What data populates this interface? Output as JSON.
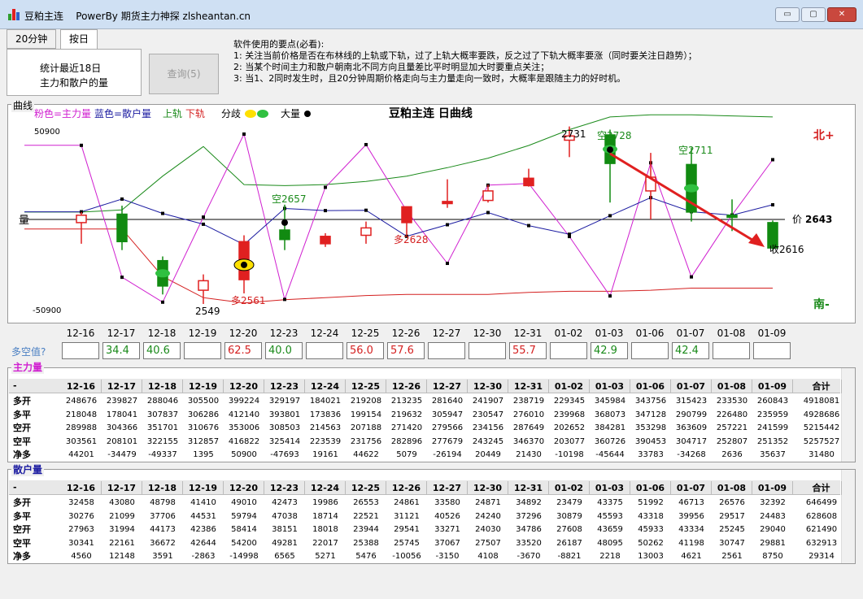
{
  "window": {
    "title": "豆粕主连",
    "subtitle": "PowerBy 期货主力神探 zlsheantan.cn",
    "buttons": {
      "minimize": "▭",
      "maximize": "▢",
      "close": "✕"
    },
    "brand_colors": [
      "#2e9e2e",
      "#e02020",
      "#2f5fc9"
    ]
  },
  "tabs": [
    {
      "label": "20分钟"
    },
    {
      "label": "按日"
    }
  ],
  "panel": {
    "line1": "统计最近18日",
    "line2": "主力和散户的量",
    "query_button": "查询(5)"
  },
  "notes": [
    "软件使用的要点(必看):",
    "1: 关注当前价格是否在布林线的上轨或下轨，过了上轨大概率要跌，反之过了下轨大概率要涨（同时要关注日趋势）；",
    "2: 当某个时间主力和散户朝南北不同方向且量差比平时明显加大时要重点关注；",
    "3: 当1、2同时发生时，且20分钟周期价格走向与主力量走向一致时，大概率是跟随主力的好时机。"
  ],
  "chart": {
    "caption": "曲线",
    "legend": {
      "pink": "粉色=主力量",
      "blue": "蓝色=散户量",
      "upper": "上轨",
      "lower": "下轨",
      "diverge": "分歧",
      "big": "大量"
    },
    "title": "豆粕主连 日曲线",
    "y_top": "50900",
    "y_bottom": "-50900",
    "y_axis_label": "量",
    "north": "北+",
    "south": "南-",
    "price_label": "价",
    "price_value": "2643",
    "annotations": [
      "2731",
      "空2728",
      "空2711",
      "空2657",
      "多2628",
      "多2561",
      "2549",
      "收2616"
    ]
  },
  "chart_data": {
    "type": "line",
    "x": [
      "12-16",
      "12-17",
      "12-18",
      "12-19",
      "12-20",
      "12-23",
      "12-24",
      "12-25",
      "12-26",
      "12-27",
      "12-30",
      "12-31",
      "01-02",
      "01-03",
      "01-06",
      "01-07",
      "01-08",
      "01-09"
    ],
    "series": [
      {
        "name": "粉色=主力量",
        "values": [
          44201,
          -34479,
          -49337,
          1395,
          50900,
          -47693,
          19161,
          44622,
          5079,
          -26194,
          20449,
          21430,
          -10198,
          -45644,
          33783,
          -34268,
          2636,
          35637
        ]
      },
      {
        "name": "蓝色=散户量",
        "values": [
          4560,
          12148,
          3591,
          -2863,
          -14998,
          6565,
          5271,
          5476,
          -10056,
          -3150,
          4108,
          -3670,
          -8821,
          2218,
          13003,
          4621,
          2561,
          8750
        ]
      }
    ],
    "candles": [
      {
        "o": 2640,
        "h": 2650,
        "l": 2620,
        "c": 2647
      },
      {
        "o": 2648,
        "h": 2656,
        "l": 2614,
        "c": 2622
      },
      {
        "o": 2604,
        "h": 2608,
        "l": 2572,
        "c": 2580
      },
      {
        "o": 2576,
        "h": 2591,
        "l": 2563,
        "c": 2585
      },
      {
        "o": 2586,
        "h": 2628,
        "l": 2573,
        "c": 2622
      },
      {
        "o": 2633,
        "h": 2657,
        "l": 2614,
        "c": 2624
      },
      {
        "o": 2620,
        "h": 2630,
        "l": 2617,
        "c": 2627
      },
      {
        "o": 2628,
        "h": 2641,
        "l": 2620,
        "c": 2635
      },
      {
        "o": 2640,
        "h": 2655,
        "l": 2628,
        "c": 2655
      },
      {
        "o": 2658,
        "h": 2681,
        "l": 2654,
        "c": 2660
      },
      {
        "o": 2661,
        "h": 2676,
        "l": 2659,
        "c": 2670
      },
      {
        "o": 2675,
        "h": 2691,
        "l": 2674,
        "c": 2682
      },
      {
        "o": 2718,
        "h": 2731,
        "l": 2702,
        "c": 2722
      },
      {
        "o": 2723,
        "h": 2728,
        "l": 2659,
        "c": 2696
      },
      {
        "o": 2670,
        "h": 2706,
        "l": 2643,
        "c": 2683
      },
      {
        "o": 2695,
        "h": 2711,
        "l": 2641,
        "c": 2650
      },
      {
        "o": 2647,
        "h": 2662,
        "l": 2632,
        "c": 2645
      },
      {
        "o": 2640,
        "h": 2642,
        "l": 2614,
        "c": 2616
      }
    ],
    "upper_band": [
      2650,
      2652,
      2684,
      2712,
      2676,
      2675,
      2676,
      2679,
      2684,
      2692,
      2701,
      2713,
      2728,
      2740,
      2742,
      2742,
      2741,
      2740
    ],
    "lower_band": [
      2634,
      2634,
      2589,
      2569,
      2564,
      2567,
      2569,
      2571,
      2572,
      2572,
      2572,
      2574,
      2575,
      2575,
      2576,
      2578,
      2578,
      2578
    ]
  },
  "dd_section": {
    "label": "多空值?"
  },
  "dates": [
    "12-16",
    "12-17",
    "12-18",
    "12-19",
    "12-20",
    "12-23",
    "12-24",
    "12-25",
    "12-26",
    "12-27",
    "12-30",
    "12-31",
    "01-02",
    "01-03",
    "01-06",
    "01-07",
    "01-08",
    "01-09"
  ],
  "dd_values": [
    {
      "v": "",
      "c": "#000"
    },
    {
      "v": "34.4",
      "c": "#1a8a1a"
    },
    {
      "v": "40.6",
      "c": "#1a8a1a"
    },
    {
      "v": "",
      "c": "#000"
    },
    {
      "v": "62.5",
      "c": "#d42020"
    },
    {
      "v": "40.0",
      "c": "#1a8a1a"
    },
    {
      "v": "",
      "c": "#000"
    },
    {
      "v": "56.0",
      "c": "#d42020"
    },
    {
      "v": "57.6",
      "c": "#d42020"
    },
    {
      "v": "",
      "c": "#000"
    },
    {
      "v": "",
      "c": "#000"
    },
    {
      "v": "55.7",
      "c": "#d42020"
    },
    {
      "v": "",
      "c": "#000"
    },
    {
      "v": "42.9",
      "c": "#1a8a1a"
    },
    {
      "v": "",
      "c": "#000"
    },
    {
      "v": "42.4",
      "c": "#1a8a1a"
    },
    {
      "v": "",
      "c": "#000"
    },
    {
      "v": "",
      "c": "#000"
    }
  ],
  "main_table": {
    "caption": "主力量",
    "header_first": "-",
    "total_label": "合计",
    "rows": [
      {
        "label": "多开",
        "values": [
          "248676",
          "239827",
          "288046",
          "305500",
          "399224",
          "329197",
          "184021",
          "219208",
          "213235",
          "281640",
          "241907",
          "238719",
          "229345",
          "345984",
          "343756",
          "315423",
          "233530",
          "260843",
          "4918081"
        ]
      },
      {
        "label": "多平",
        "values": [
          "218048",
          "178041",
          "307837",
          "306286",
          "412140",
          "393801",
          "173836",
          "199154",
          "219632",
          "305947",
          "230547",
          "276010",
          "239968",
          "368073",
          "347128",
          "290799",
          "226480",
          "235959",
          "4928686"
        ]
      },
      {
        "label": "空开",
        "values": [
          "289988",
          "304366",
          "351701",
          "310676",
          "353006",
          "308503",
          "214563",
          "207188",
          "271420",
          "279566",
          "234156",
          "287649",
          "202652",
          "384281",
          "353298",
          "363609",
          "257221",
          "241599",
          "5215442"
        ]
      },
      {
        "label": "空平",
        "values": [
          "303561",
          "208101",
          "322155",
          "312857",
          "416822",
          "325414",
          "223539",
          "231756",
          "282896",
          "277679",
          "243245",
          "346370",
          "203077",
          "360726",
          "390453",
          "304717",
          "252807",
          "251352",
          "5257527"
        ]
      },
      {
        "label": "净多",
        "values": [
          "44201",
          "-34479",
          "-49337",
          "1395",
          "50900",
          "-47693",
          "19161",
          "44622",
          "5079",
          "-26194",
          "20449",
          "21430",
          "-10198",
          "-45644",
          "33783",
          "-34268",
          "2636",
          "35637",
          "31480"
        ]
      }
    ]
  },
  "retail_table": {
    "caption": "散户量",
    "header_first": "-",
    "total_label": "合计",
    "rows": [
      {
        "label": "多开",
        "values": [
          "32458",
          "43080",
          "48798",
          "41410",
          "49010",
          "42473",
          "19986",
          "26553",
          "24861",
          "33580",
          "24871",
          "34892",
          "23479",
          "43375",
          "51992",
          "46713",
          "26576",
          "32392",
          "646499"
        ]
      },
      {
        "label": "多平",
        "values": [
          "30276",
          "21099",
          "37706",
          "44531",
          "59794",
          "47038",
          "18714",
          "22521",
          "31121",
          "40526",
          "24240",
          "37296",
          "30879",
          "45593",
          "43318",
          "39956",
          "29517",
          "24483",
          "628608"
        ]
      },
      {
        "label": "空开",
        "values": [
          "27963",
          "31994",
          "44173",
          "42386",
          "58414",
          "38151",
          "18018",
          "23944",
          "29541",
          "33271",
          "24030",
          "34786",
          "27608",
          "43659",
          "45933",
          "43334",
          "25245",
          "29040",
          "621490"
        ]
      },
      {
        "label": "空平",
        "values": [
          "30341",
          "22161",
          "36672",
          "42644",
          "54200",
          "49281",
          "22017",
          "25388",
          "25745",
          "37067",
          "27507",
          "33520",
          "26187",
          "48095",
          "50262",
          "41198",
          "30747",
          "29881",
          "632913"
        ]
      },
      {
        "label": "净多",
        "values": [
          "4560",
          "12148",
          "3591",
          "-2863",
          "-14998",
          "6565",
          "5271",
          "5476",
          "-10056",
          "-3150",
          "4108",
          "-3670",
          "-8821",
          "2218",
          "13003",
          "4621",
          "2561",
          "8750",
          "29314"
        ]
      }
    ]
  }
}
